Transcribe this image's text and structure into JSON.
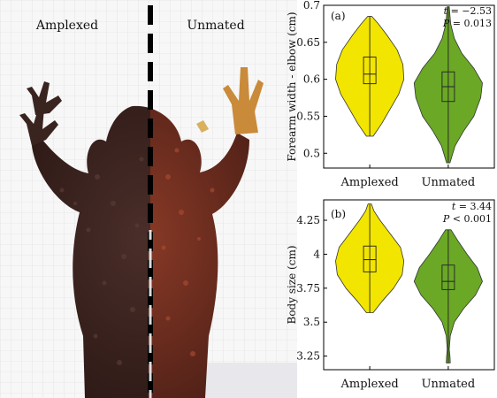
{
  "photo": {
    "left_label": "Amplexed",
    "right_label": "Unmated"
  },
  "chart_data": [
    {
      "type": "violin",
      "panel_label": "(a)",
      "ylabel": "Forearm width - elbow (cm)",
      "ylim": [
        0.48,
        0.7
      ],
      "yticks": [
        0.5,
        0.55,
        0.6,
        0.65,
        0.7
      ],
      "ytick_labels": [
        "0.5",
        "0.55",
        "0.6",
        "0.65",
        "0.7"
      ],
      "categories": [
        "Amplexed",
        "Unmated"
      ],
      "stat_line": "t = −2.53",
      "p_line": "P = 0.013",
      "colors": [
        "#f2e500",
        "#6aa826"
      ],
      "series": [
        {
          "category": "Amplexed",
          "min": 0.523,
          "q1": 0.594,
          "median": 0.607,
          "q3": 0.63,
          "max": 0.685,
          "density": [
            [
              0.523,
              0.1
            ],
            [
              0.54,
              0.35
            ],
            [
              0.56,
              0.6
            ],
            [
              0.58,
              0.85
            ],
            [
              0.6,
              1.0
            ],
            [
              0.62,
              0.97
            ],
            [
              0.64,
              0.8
            ],
            [
              0.66,
              0.5
            ],
            [
              0.675,
              0.25
            ],
            [
              0.685,
              0.06
            ]
          ]
        },
        {
          "category": "Unmated",
          "min": 0.487,
          "q1": 0.57,
          "median": 0.59,
          "q3": 0.61,
          "max": 0.698,
          "density": [
            [
              0.487,
              0.05
            ],
            [
              0.51,
              0.2
            ],
            [
              0.53,
              0.45
            ],
            [
              0.55,
              0.75
            ],
            [
              0.575,
              0.95
            ],
            [
              0.595,
              1.0
            ],
            [
              0.615,
              0.75
            ],
            [
              0.635,
              0.4
            ],
            [
              0.655,
              0.18
            ],
            [
              0.675,
              0.07
            ],
            [
              0.698,
              0.03
            ]
          ]
        }
      ]
    },
    {
      "type": "violin",
      "panel_label": "(b)",
      "ylabel": "Body size (cm)",
      "ylim": [
        3.15,
        4.4
      ],
      "yticks": [
        3.25,
        3.5,
        3.75,
        4.0,
        4.25
      ],
      "ytick_labels": [
        "3.25",
        "3.5",
        "3.75",
        "4",
        "4.25"
      ],
      "categories": [
        "Amplexed",
        "Unmated"
      ],
      "stat_line": "t = 3.44",
      "p_line": "P < 0.001",
      "colors": [
        "#f2e500",
        "#6aa826"
      ],
      "series": [
        {
          "category": "Amplexed",
          "min": 3.57,
          "q1": 3.87,
          "median": 3.96,
          "q3": 4.06,
          "max": 4.37,
          "density": [
            [
              3.57,
              0.1
            ],
            [
              3.65,
              0.35
            ],
            [
              3.75,
              0.7
            ],
            [
              3.85,
              0.95
            ],
            [
              3.95,
              1.0
            ],
            [
              4.05,
              0.9
            ],
            [
              4.15,
              0.6
            ],
            [
              4.25,
              0.3
            ],
            [
              4.32,
              0.12
            ],
            [
              4.37,
              0.05
            ]
          ]
        },
        {
          "category": "Unmated",
          "min": 3.2,
          "q1": 3.74,
          "median": 3.8,
          "q3": 3.92,
          "max": 4.18,
          "density": [
            [
              3.2,
              0.06
            ],
            [
              3.25,
              0.05
            ],
            [
              3.3,
              0.03
            ],
            [
              3.4,
              0.06
            ],
            [
              3.5,
              0.18
            ],
            [
              3.6,
              0.45
            ],
            [
              3.7,
              0.8
            ],
            [
              3.8,
              1.0
            ],
            [
              3.9,
              0.85
            ],
            [
              4.0,
              0.55
            ],
            [
              4.1,
              0.28
            ],
            [
              4.18,
              0.08
            ]
          ]
        }
      ]
    }
  ]
}
